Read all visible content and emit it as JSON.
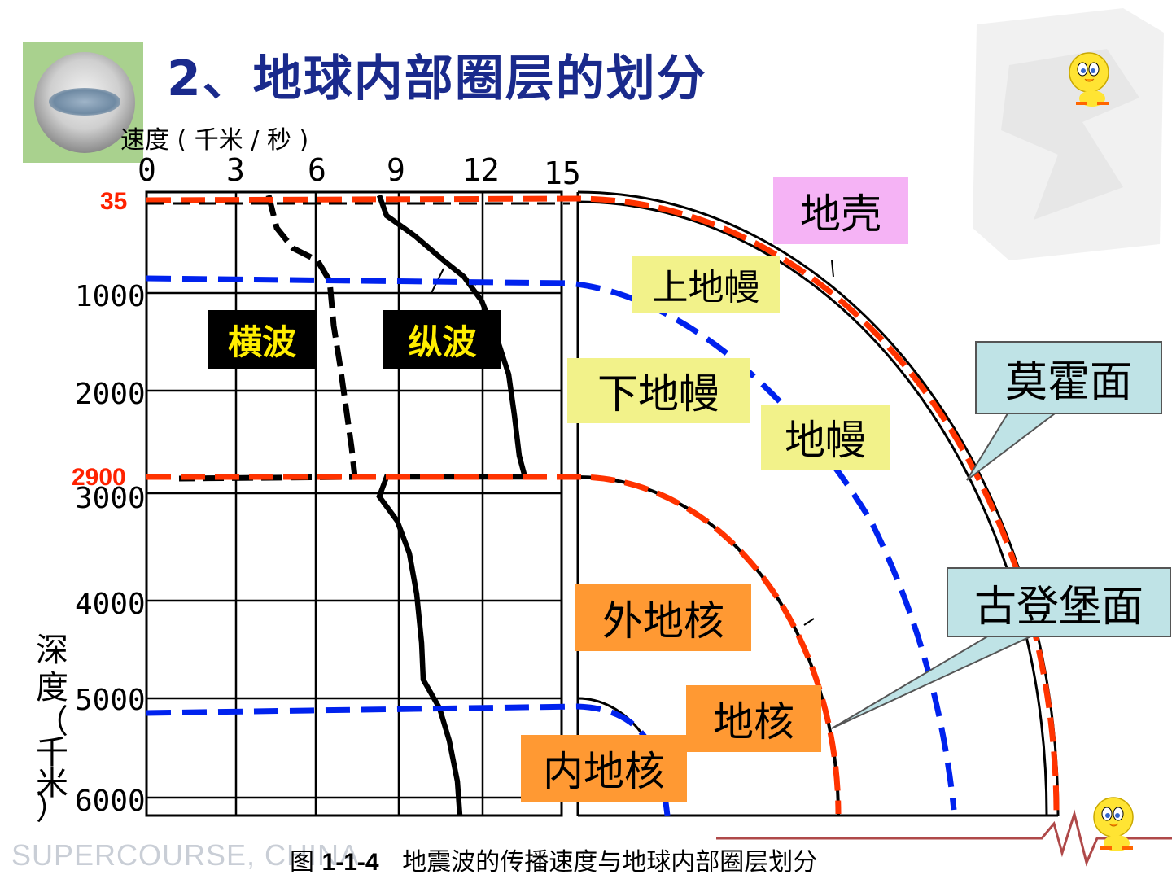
{
  "title": "2、地球内部圈层的划分",
  "speed_axis_label": "速度 ( 千米 / 秒 )",
  "depth_axis_label": [
    "深",
    "度",
    "（",
    "千",
    "米",
    "）"
  ],
  "speed_ticks": [
    "0",
    "3",
    "6",
    "9",
    "12",
    "15"
  ],
  "depth_ticks": [
    "1000",
    "2000",
    "3000",
    "4000",
    "5000",
    "6000"
  ],
  "boundary_depths": [
    "35",
    "2900"
  ],
  "wave_labels": {
    "transverse": "横波",
    "longitudinal": "纵波"
  },
  "layer_labels": {
    "crust": "地壳",
    "upper_mantle": "上地幔",
    "lower_mantle": "下地幔",
    "mantle": "地幔",
    "outer_core": "外地核",
    "core": "地核",
    "inner_core": "内地核"
  },
  "callouts": {
    "moho": "莫霍面",
    "gutenberg": "古登堡面"
  },
  "caption": {
    "prefix": "图 ",
    "number": "1-1-4",
    "text": "地震波的传播速度与地球内部圈层划分"
  },
  "footer_brand": "SUPERCOURSE, CHINA",
  "colors": {
    "title": "#1a2a8c",
    "crust_box": "#f5b3f5",
    "mantle_box": "#f2f28a",
    "core_box": "#ff9933",
    "callout_box": "#bfe3e6",
    "boundary_red": "#ff3300",
    "boundary_blue": "#0022ee",
    "depth_red": "#ff2200"
  },
  "icons": [
    "earth-globe-icon",
    "tweety-bird-icon",
    "watermark-emblem-icon"
  ]
}
